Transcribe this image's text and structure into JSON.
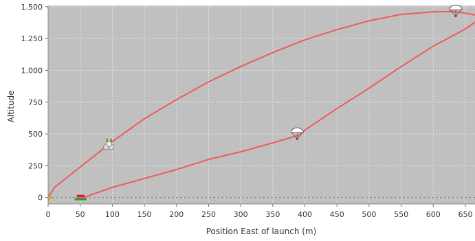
{
  "chart_data": {
    "type": "line",
    "title": "",
    "xlabel": "Position East of launch (m)",
    "ylabel": "Altitude",
    "xlim": [
      0,
      665
    ],
    "ylim": [
      -50,
      1510
    ],
    "x_ticks": [
      0,
      50,
      100,
      150,
      200,
      250,
      300,
      350,
      400,
      450,
      500,
      550,
      600,
      650
    ],
    "x_tick_labels": [
      "0",
      "50",
      "100",
      "150",
      "200",
      "250",
      "300",
      "350",
      "400",
      "450",
      "500",
      "550",
      "600",
      "650"
    ],
    "y_ticks": [
      0,
      250,
      500,
      750,
      1000,
      1250,
      1500
    ],
    "y_tick_labels": [
      "0",
      "250",
      "500",
      "750",
      "1.000",
      "1.250",
      "1.500"
    ],
    "grid": true,
    "legend": "none",
    "colors": {
      "plot_background": "#c0c0c0",
      "grid": "#e4e4e4",
      "line": "#f05a5a",
      "ground_line": "#777777"
    },
    "series": [
      {
        "x": [
          0,
          10,
          30,
          60,
          100,
          150,
          200,
          250,
          300,
          350,
          400,
          450,
          500,
          550,
          600,
          630,
          650,
          665
        ],
        "y": [
          0,
          80,
          160,
          280,
          440,
          620,
          770,
          910,
          1030,
          1140,
          1240,
          1320,
          1390,
          1440,
          1460,
          1463,
          1450,
          1435
        ]
      },
      {
        "x": [
          45,
          55,
          100,
          150,
          200,
          250,
          300,
          350,
          390,
          400,
          450,
          500,
          550,
          600,
          650,
          665
        ],
        "y": [
          0,
          0,
          80,
          150,
          220,
          300,
          360,
          430,
          490,
          530,
          700,
          860,
          1030,
          1190,
          1325,
          1380
        ]
      }
    ],
    "annotations": [
      {
        "type": "launch-marker",
        "x": 3,
        "y": 0
      },
      {
        "type": "burnout-marker",
        "x": 95,
        "y": 415
      },
      {
        "type": "parachute-marker",
        "x": 635,
        "y": 1465
      },
      {
        "type": "parachute-marker",
        "x": 388,
        "y": 500
      },
      {
        "type": "landing-marker",
        "x": 48,
        "y": 0
      }
    ]
  }
}
